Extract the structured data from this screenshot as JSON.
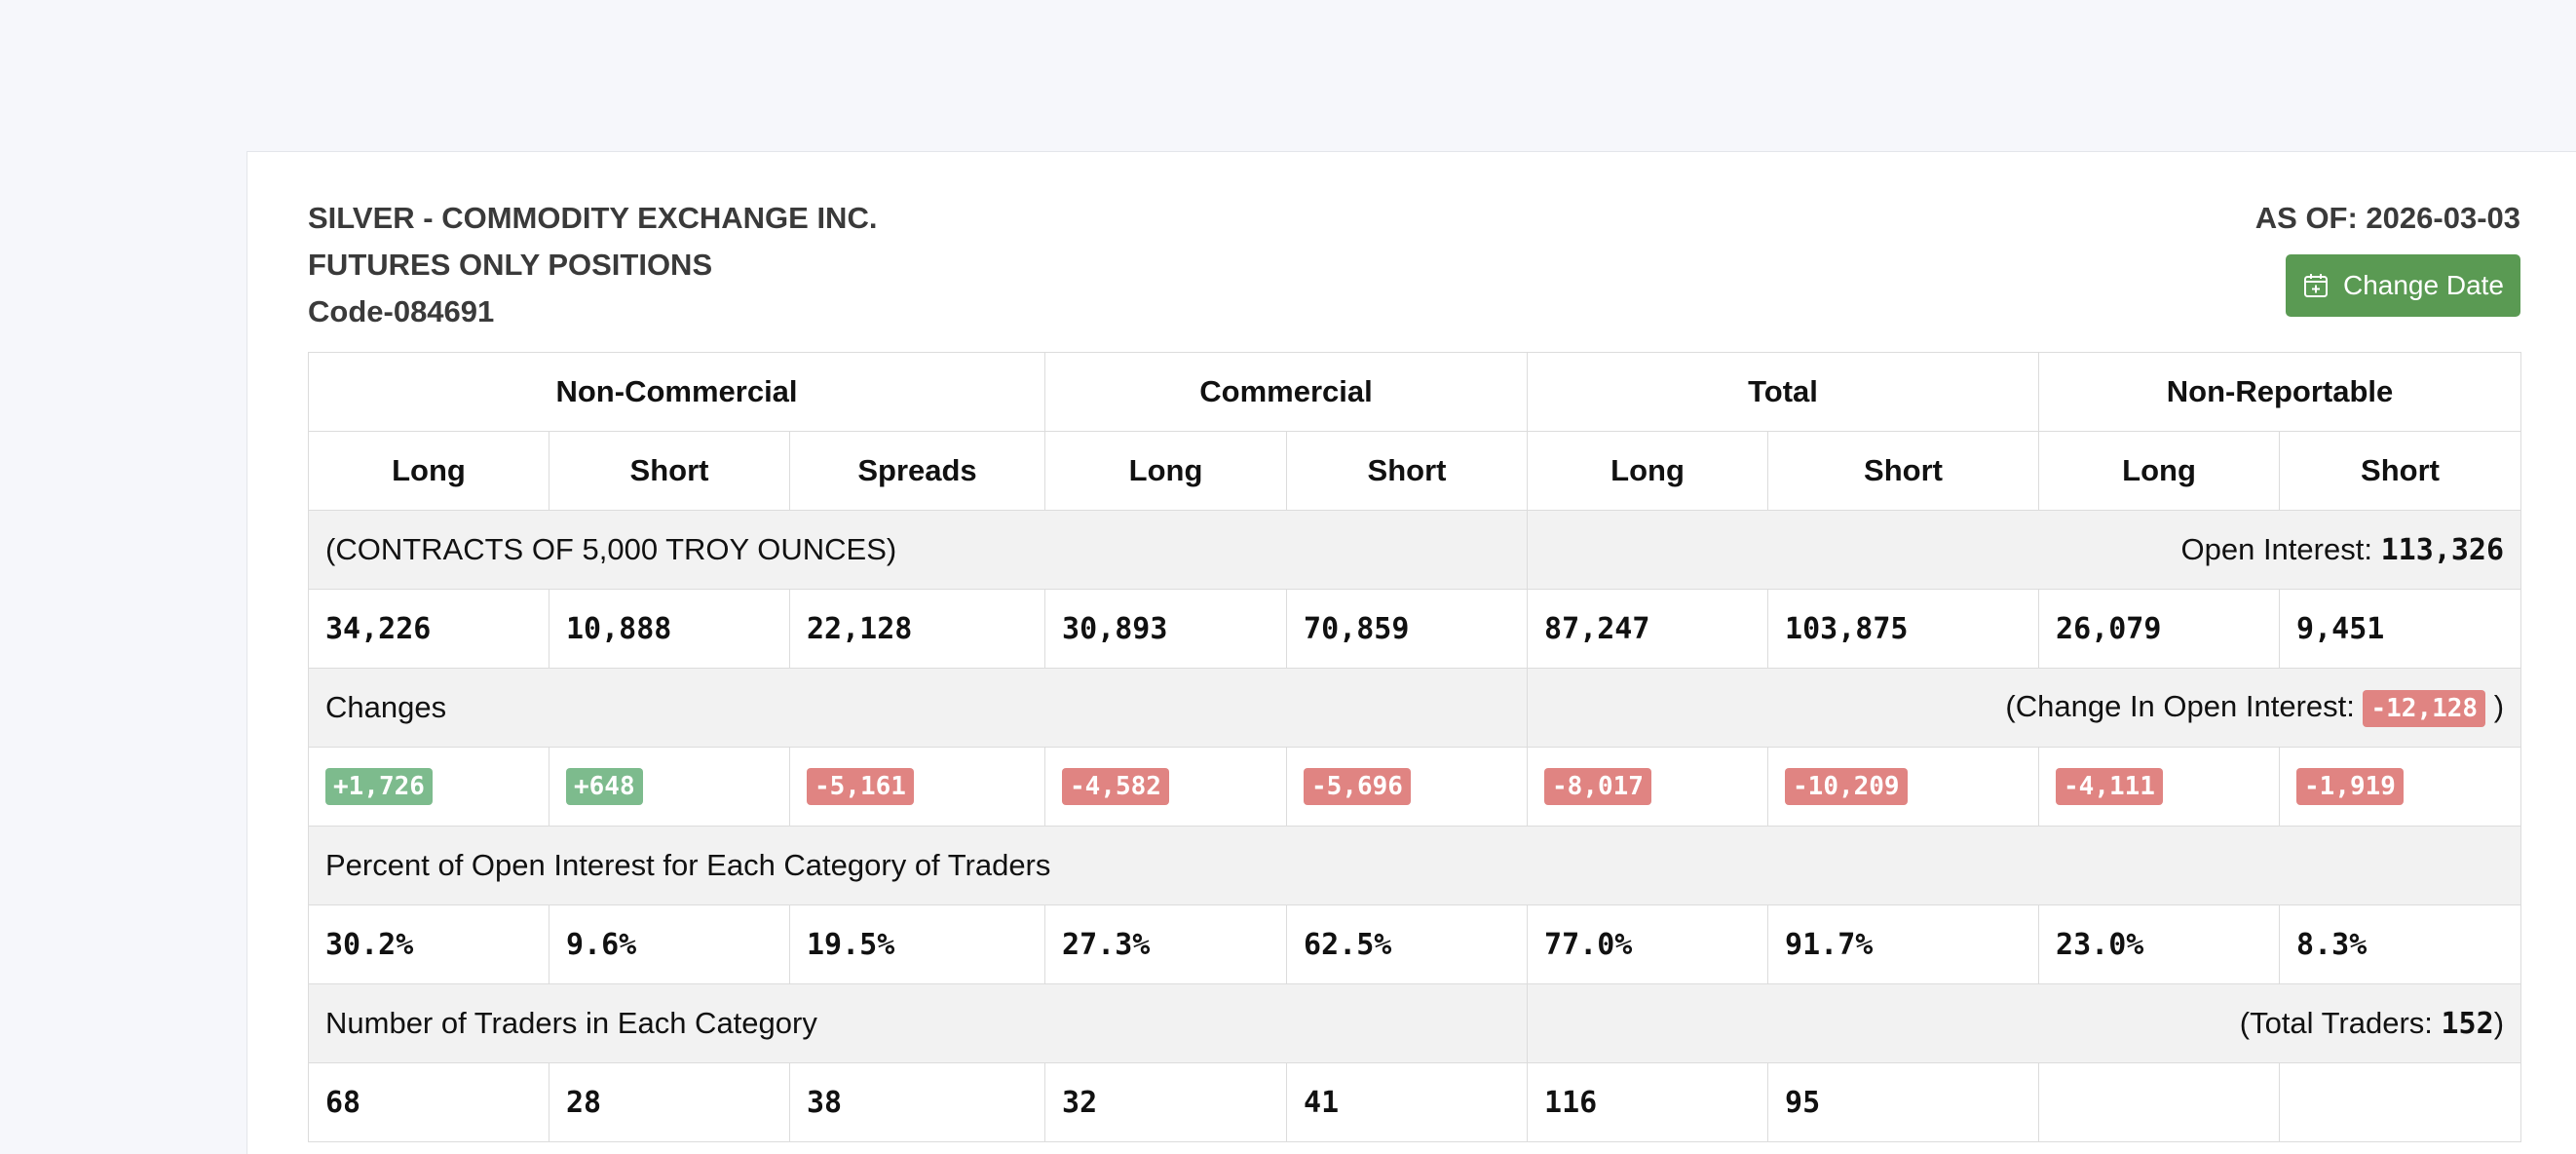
{
  "header": {
    "title_line1": "SILVER - COMMODITY EXCHANGE INC.",
    "title_line2": "FUTURES ONLY POSITIONS",
    "code": "Code-084691",
    "as_of": "AS OF: 2026-03-03",
    "change_date_label": "Change Date"
  },
  "colors": {
    "button_green": "#5a9a53",
    "positive_badge": "#7dbb8d",
    "negative_badge": "#e08482",
    "band_background": "#f2f2f2"
  },
  "table": {
    "groups": {
      "non_commercial": "Non-Commercial",
      "commercial": "Commercial",
      "total": "Total",
      "non_reportable": "Non-Reportable"
    },
    "columns": [
      "Long",
      "Short",
      "Spreads",
      "Long",
      "Short",
      "Long",
      "Short",
      "Long",
      "Short"
    ],
    "contracts_label": "(CONTRACTS OF 5,000 TROY OUNCES)",
    "open_interest_label": "Open Interest:",
    "open_interest_value": "113,326",
    "positions": [
      "34,226",
      "10,888",
      "22,128",
      "30,893",
      "70,859",
      "87,247",
      "103,875",
      "26,079",
      "9,451"
    ],
    "changes_label": "Changes",
    "change_oi_prefix": "(Change In Open Interest:",
    "change_oi_value": "-12,128",
    "change_oi_suffix": ")",
    "changes": [
      "+1,726",
      "+648",
      "-5,161",
      "-4,582",
      "-5,696",
      "-8,017",
      "-10,209",
      "-4,111",
      "-1,919"
    ],
    "percent_label": "Percent of Open Interest for Each Category of Traders",
    "percents": [
      "30.2%",
      "9.6%",
      "19.5%",
      "27.3%",
      "62.5%",
      "77.0%",
      "91.7%",
      "23.0%",
      "8.3%"
    ],
    "traders_label": "Number of Traders in Each Category",
    "total_traders_prefix": "(Total Traders:",
    "total_traders_value": "152",
    "total_traders_suffix": ")",
    "traders": [
      "68",
      "28",
      "38",
      "32",
      "41",
      "116",
      "95",
      "",
      ""
    ]
  },
  "icons": {
    "change_date": "calendar-plus-icon"
  }
}
